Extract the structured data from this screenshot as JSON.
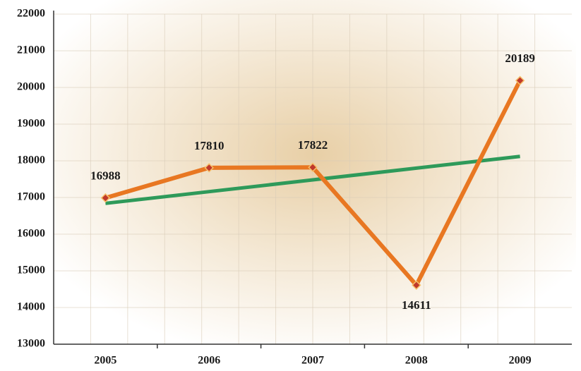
{
  "chart_data": {
    "type": "line",
    "categories": [
      "2005",
      "2006",
      "2007",
      "2008",
      "2009"
    ],
    "series": [
      {
        "color": "#e87722",
        "values": [
          16988,
          17810,
          17822,
          14611,
          20189
        ]
      },
      {
        "color": "#2e9a5a",
        "values": [
          16840,
          17160,
          17480,
          17800,
          18120
        ]
      }
    ],
    "ylim": [
      13000,
      22000
    ],
    "yticks": [
      13000,
      14000,
      15000,
      16000,
      17000,
      18000,
      19000,
      20000,
      21000,
      22000
    ],
    "grid": true,
    "marker_color": "#c0392b"
  }
}
